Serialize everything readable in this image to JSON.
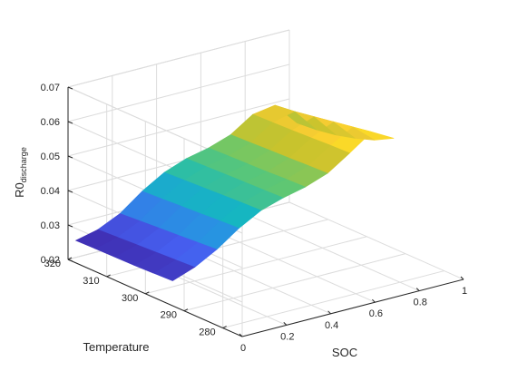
{
  "chart_data": {
    "type": "surface",
    "title": "",
    "xlabel": "SOC",
    "ylabel": "Temperature",
    "zlabel_main": "R0",
    "zlabel_sub": "discharge",
    "xlim": [
      0,
      1
    ],
    "ylim": [
      275,
      320
    ],
    "zlim": [
      0.02,
      0.07
    ],
    "x_ticks": [
      0,
      0.2,
      0.4,
      0.6,
      0.8,
      1
    ],
    "x_tick_labels": [
      "0",
      "0.2",
      "0.4",
      "0.6",
      "0.8",
      "1"
    ],
    "y_ticks": [
      280,
      290,
      300,
      310,
      320
    ],
    "y_tick_labels": [
      "280",
      "290",
      "300",
      "310",
      "320"
    ],
    "z_ticks": [
      0.02,
      0.03,
      0.04,
      0.05,
      0.06,
      0.07
    ],
    "z_tick_labels": [
      "0.02",
      "0.03",
      "0.04",
      "0.05",
      "0.06",
      "0.07"
    ],
    "grid": true,
    "colormap": "parula",
    "soc": [
      0,
      0.1,
      0.2,
      0.3,
      0.4,
      0.5,
      0.6,
      0.7,
      0.8,
      0.9,
      1.0
    ],
    "temperature": [
      293,
      298,
      303,
      308,
      313,
      318
    ],
    "r0": [
      [
        0.0272,
        0.0295,
        0.033,
        0.0375,
        0.041,
        0.043,
        0.0445,
        0.0468,
        0.051,
        0.0555,
        0.052
      ],
      [
        0.027,
        0.0292,
        0.0326,
        0.0372,
        0.0408,
        0.0428,
        0.0443,
        0.0466,
        0.0508,
        0.0545,
        0.049
      ],
      [
        0.0268,
        0.0289,
        0.0322,
        0.0368,
        0.0405,
        0.0426,
        0.044,
        0.0463,
        0.0505,
        0.0535,
        0.047
      ],
      [
        0.0267,
        0.0286,
        0.0318,
        0.0365,
        0.0402,
        0.0424,
        0.0438,
        0.0461,
        0.0502,
        0.0525,
        0.0455
      ],
      [
        0.0266,
        0.0283,
        0.0314,
        0.0361,
        0.0399,
        0.0422,
        0.0436,
        0.0458,
        0.05,
        0.0515,
        0.0445
      ],
      [
        0.0265,
        0.028,
        0.031,
        0.0358,
        0.0396,
        0.042,
        0.0434,
        0.0456,
        0.0498,
        0.0508,
        0.044
      ]
    ]
  }
}
